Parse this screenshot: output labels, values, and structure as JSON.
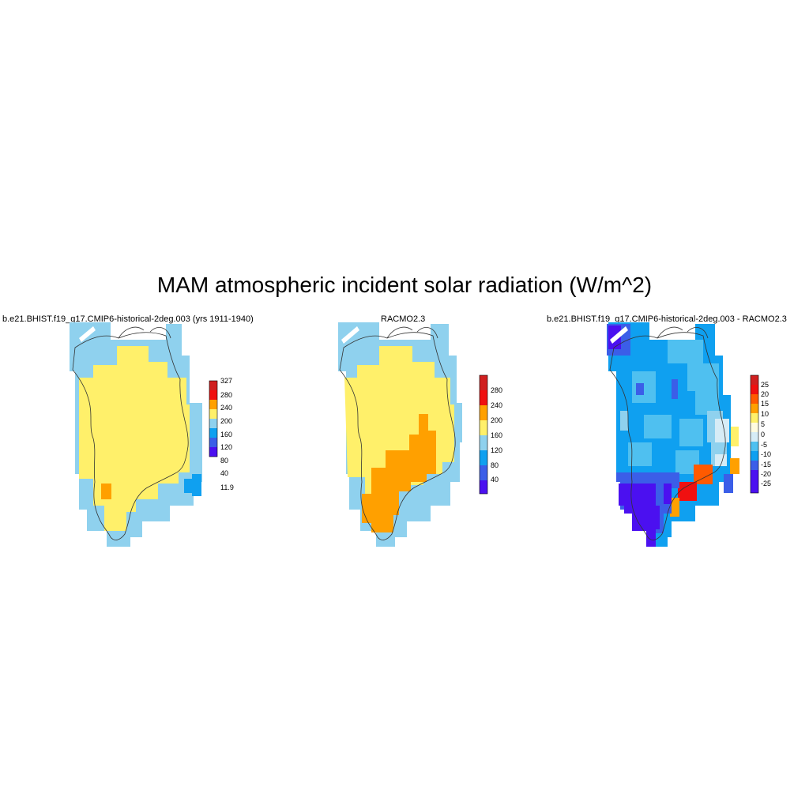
{
  "title": "MAM atmospheric incident solar radiation (W/m^2)",
  "colors": {
    "c_purple": "#4b10f0",
    "c_dblue": "#3b5ee8",
    "c_blue": "#0fa0f0",
    "c_lblue": "#8fd1ee",
    "c_pale": "#d6ecf6",
    "c_yellow": "#fff06a",
    "c_orange": "#ffa000",
    "c_dorange": "#ff5a00",
    "c_red": "#f01010",
    "c_dred": "#d02020"
  },
  "panels": [
    {
      "title": "b.e21.BHIST.f19_g17.CMIP6-historical-2deg.003 (yrs 1911-1940)",
      "colorbar": {
        "labels": [
          "327",
          "280",
          "240",
          "200",
          "160",
          "120",
          "80",
          "40",
          "11.9"
        ],
        "colors": [
          "c_dred",
          "c_red",
          "c_orange",
          "c_yellow",
          "c_lblue",
          "c_blue",
          "c_dblue",
          "c_purple"
        ]
      }
    },
    {
      "title": "RACMO2.3",
      "colorbar": {
        "labels": [
          "280",
          "240",
          "200",
          "160",
          "120",
          "80",
          "40"
        ],
        "colors": [
          "c_dred",
          "c_red",
          "c_orange",
          "c_yellow",
          "c_lblue",
          "c_blue",
          "c_dblue",
          "c_purple"
        ]
      }
    },
    {
      "title": "b.e21.BHIST.f19_g17.CMIP6-historical-2deg.003 - RACMO2.3",
      "colorbar": {
        "labels": [
          "25",
          "20",
          "15",
          "10",
          "5",
          "0",
          "-5",
          "-10",
          "-15",
          "-20",
          "-25"
        ],
        "colors": [
          "c_dred",
          "c_red",
          "c_dorange",
          "c_orange",
          "c_yellow",
          "c_pale",
          "c_lblue",
          "c_blue",
          "c_blue",
          "c_dblue",
          "c_purple",
          "c_purple"
        ]
      }
    }
  ]
}
